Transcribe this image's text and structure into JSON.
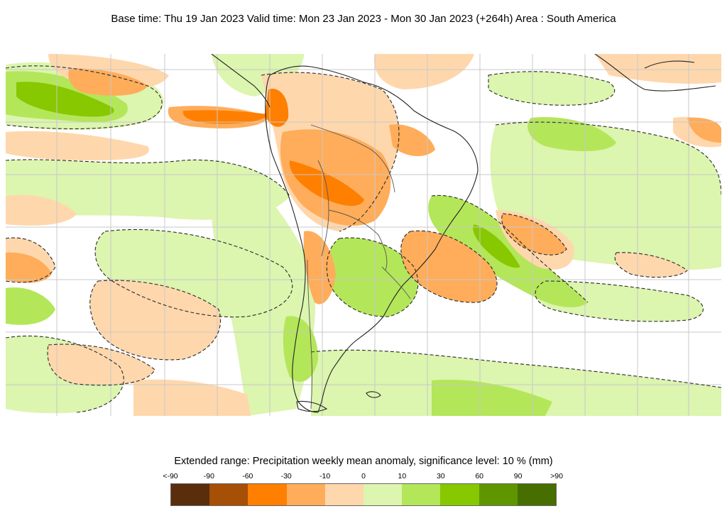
{
  "header": {
    "title": "Base time: Thu 19 Jan 2023 Valid time: Mon 23 Jan 2023 - Mon 30 Jan 2023 (+264h) Area : South America"
  },
  "map": {
    "area": "South America",
    "colors": {
      "ocean_background": "#ffffff",
      "grid": "#c8c8c8",
      "coast": "#222222",
      "contour": "#2a2a2a"
    }
  },
  "legend": {
    "title": "Extended range: Precipitation weekly mean anomaly, significance level: 10 % (mm)",
    "ticks": [
      "<-90",
      "-90",
      "-60",
      "-30",
      "-10",
      "0",
      "10",
      "30",
      "60",
      "90",
      ">90"
    ],
    "colors": [
      "#5a2d0c",
      "#a64f06",
      "#ff7f00",
      "#ffad5a",
      "#ffd7ad",
      "#dcf5af",
      "#b4e65a",
      "#87c800",
      "#5f9600",
      "#466e00"
    ]
  }
}
